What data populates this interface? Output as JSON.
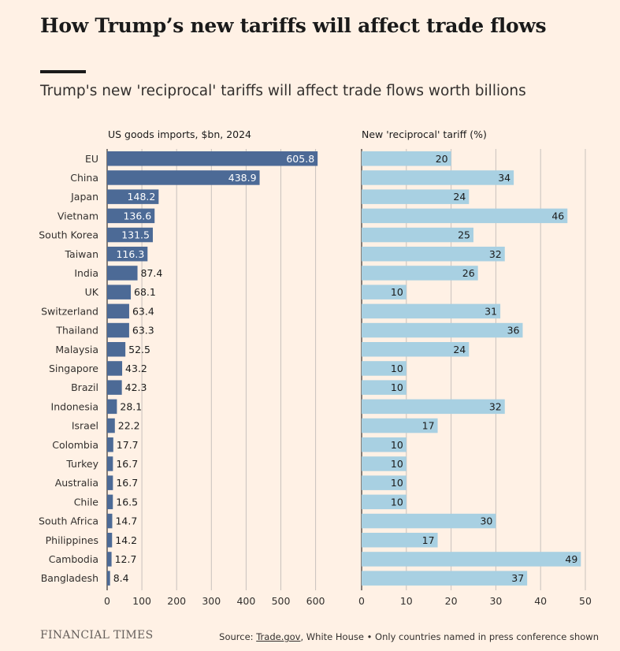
{
  "header": {
    "title": "How Trump’s new tariffs will affect trade flows",
    "subtitle": "Trump's new 'reciprocal' tariffs will affect trade flows worth billions"
  },
  "footer": {
    "brand": "FINANCIAL TIMES",
    "source_prefix": "Source: ",
    "source_link": "Trade.gov",
    "source_rest": ", White House • Only countries named in press conference shown"
  },
  "colors": {
    "imports_bar": "#4c6a96",
    "tariff_bar": "#a8d0e2",
    "grid": "#c8c2bd",
    "background": "#fff1e5"
  },
  "chart_data": [
    {
      "type": "bar",
      "orientation": "horizontal",
      "title": "US goods imports, $bn, 2024",
      "categories": [
        "EU",
        "China",
        "Japan",
        "Vietnam",
        "South Korea",
        "Taiwan",
        "India",
        "UK",
        "Switzerland",
        "Thailand",
        "Malaysia",
        "Singapore",
        "Brazil",
        "Indonesia",
        "Israel",
        "Colombia",
        "Turkey",
        "Australia",
        "Chile",
        "South Africa",
        "Philippines",
        "Cambodia",
        "Bangladesh"
      ],
      "values": [
        605.8,
        438.9,
        148.2,
        136.6,
        131.5,
        116.3,
        87.4,
        68.1,
        63.4,
        63.3,
        52.5,
        43.2,
        42.3,
        28.1,
        22.2,
        17.7,
        16.7,
        16.7,
        16.5,
        14.7,
        14.2,
        12.7,
        8.4
      ],
      "value_labels": [
        "605.8",
        "438.9",
        "148.2",
        "136.6",
        "131.5",
        "116.3",
        "87.4",
        "68.1",
        "63.4",
        "63.3",
        "52.5",
        "43.2",
        "42.3",
        "28.1",
        "22.2",
        "17.7",
        "16.7",
        "16.7",
        "16.5",
        "14.7",
        "14.2",
        "12.7",
        "8.4"
      ],
      "xlim": [
        0,
        650
      ],
      "xticks": [
        0,
        100,
        200,
        300,
        400,
        500,
        600
      ],
      "grid": true
    },
    {
      "type": "bar",
      "orientation": "horizontal",
      "title": "New 'reciprocal' tariff (%)",
      "categories": [
        "EU",
        "China",
        "Japan",
        "Vietnam",
        "South Korea",
        "Taiwan",
        "India",
        "UK",
        "Switzerland",
        "Thailand",
        "Malaysia",
        "Singapore",
        "Brazil",
        "Indonesia",
        "Israel",
        "Colombia",
        "Turkey",
        "Australia",
        "Chile",
        "South Africa",
        "Philippines",
        "Cambodia",
        "Bangladesh"
      ],
      "values": [
        20,
        34,
        24,
        46,
        25,
        32,
        26,
        10,
        31,
        36,
        24,
        10,
        10,
        32,
        17,
        10,
        10,
        10,
        10,
        30,
        17,
        49,
        37
      ],
      "xlim": [
        0,
        50
      ],
      "xticks": [
        0,
        10,
        20,
        30,
        40,
        50
      ],
      "grid": true
    }
  ]
}
